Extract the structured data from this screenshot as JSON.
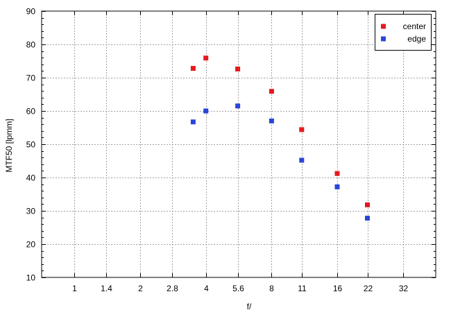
{
  "chart_data": {
    "type": "scatter",
    "xlabel": "f/",
    "ylabel": "MTF50 [lpmm]",
    "x_scale": "log2",
    "x_ticks": [
      1,
      1.4,
      2,
      2.8,
      4,
      5.6,
      8,
      11,
      16,
      22,
      32
    ],
    "x_tick_labels": [
      "1",
      "1.4",
      "2",
      "2.8",
      "4",
      "5.6",
      "8",
      "11",
      "16",
      "22",
      "32"
    ],
    "xlim": [
      0.707,
      45.25
    ],
    "ylim": [
      10,
      90
    ],
    "y_ticks": [
      10,
      20,
      30,
      40,
      50,
      60,
      70,
      80,
      90
    ],
    "grid": true,
    "legend_position": "top-right",
    "series": [
      {
        "name": "center",
        "color": "#e41a1c",
        "points": [
          {
            "x": 3.5,
            "y": 72.8
          },
          {
            "x": 4,
            "y": 75.9
          },
          {
            "x": 5.6,
            "y": 72.6
          },
          {
            "x": 8,
            "y": 65.9
          },
          {
            "x": 11,
            "y": 54.4
          },
          {
            "x": 16,
            "y": 41.2
          },
          {
            "x": 22,
            "y": 31.8
          }
        ]
      },
      {
        "name": "edge",
        "color": "#2846d8",
        "points": [
          {
            "x": 3.5,
            "y": 56.7
          },
          {
            "x": 4,
            "y": 60.0
          },
          {
            "x": 5.6,
            "y": 61.5
          },
          {
            "x": 8,
            "y": 57.0
          },
          {
            "x": 11,
            "y": 45.2
          },
          {
            "x": 16,
            "y": 37.2
          },
          {
            "x": 22,
            "y": 27.8
          }
        ]
      }
    ]
  }
}
